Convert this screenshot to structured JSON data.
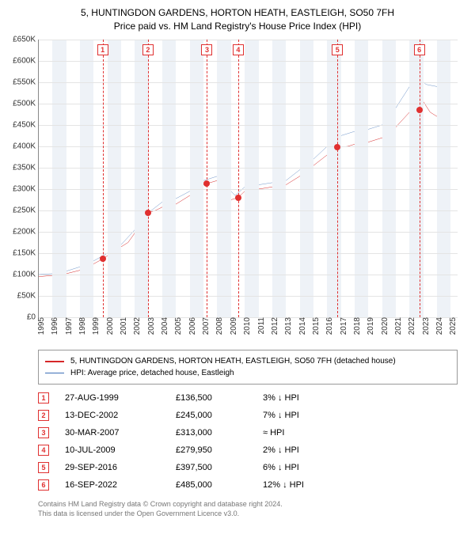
{
  "title": {
    "line1": "5, HUNTINGDON GARDENS, HORTON HEATH, EASTLEIGH, SO50 7FH",
    "line2": "Price paid vs. HM Land Registry's House Price Index (HPI)"
  },
  "chart": {
    "type": "line",
    "background_color": "#ffffff",
    "band_color": "#eef2f7",
    "grid_color": "#e4e4e4",
    "axis_color": "#888888",
    "xlim": [
      1995,
      2025.5
    ],
    "ylim": [
      0,
      650000
    ],
    "ytick_step": 50000,
    "ytick_labels": [
      "£0",
      "£50K",
      "£100K",
      "£150K",
      "£200K",
      "£250K",
      "£300K",
      "£350K",
      "£400K",
      "£450K",
      "£500K",
      "£550K",
      "£600K",
      "£650K"
    ],
    "x_ticks": [
      1995,
      1996,
      1997,
      1998,
      1999,
      2000,
      2001,
      2002,
      2003,
      2004,
      2005,
      2006,
      2007,
      2008,
      2009,
      2010,
      2011,
      2012,
      2013,
      2014,
      2015,
      2016,
      2017,
      2018,
      2019,
      2020,
      2021,
      2022,
      2023,
      2024,
      2025
    ],
    "title_fontsize": 12,
    "label_fontsize": 10,
    "series": [
      {
        "name": "price_paid",
        "label": "5, HUNTINGDON GARDENS, HORTON HEATH, EASTLEIGH, SO50 7FH (detached house)",
        "color": "#d62728",
        "line_width": 2,
        "points": [
          [
            1995.0,
            95000
          ],
          [
            1996.0,
            98000
          ],
          [
            1997.0,
            102000
          ],
          [
            1998.0,
            110000
          ],
          [
            1999.0,
            125000
          ],
          [
            1999.65,
            136500
          ],
          [
            2000.5,
            155000
          ],
          [
            2001.5,
            175000
          ],
          [
            2002.5,
            220000
          ],
          [
            2002.95,
            245000
          ],
          [
            2003.5,
            250000
          ],
          [
            2004.0,
            258000
          ],
          [
            2005.0,
            265000
          ],
          [
            2006.0,
            285000
          ],
          [
            2007.0,
            310000
          ],
          [
            2007.25,
            313000
          ],
          [
            2008.0,
            320000
          ],
          [
            2008.5,
            300000
          ],
          [
            2009.0,
            275000
          ],
          [
            2009.5,
            279950
          ],
          [
            2010.0,
            295000
          ],
          [
            2011.0,
            300000
          ],
          [
            2012.0,
            305000
          ],
          [
            2013.0,
            310000
          ],
          [
            2014.0,
            330000
          ],
          [
            2015.0,
            355000
          ],
          [
            2016.0,
            380000
          ],
          [
            2016.75,
            397500
          ],
          [
            2017.5,
            400000
          ],
          [
            2018.0,
            405000
          ],
          [
            2019.0,
            410000
          ],
          [
            2020.0,
            420000
          ],
          [
            2021.0,
            445000
          ],
          [
            2022.0,
            480000
          ],
          [
            2022.7,
            485000
          ],
          [
            2023.0,
            505000
          ],
          [
            2023.5,
            480000
          ],
          [
            2024.0,
            470000
          ],
          [
            2024.5,
            475000
          ]
        ]
      },
      {
        "name": "hpi",
        "label": "HPI: Average price, detached house, Eastleigh",
        "color": "#3b6fb6",
        "line_width": 1.5,
        "points": [
          [
            1995.0,
            100000
          ],
          [
            1996.0,
            102000
          ],
          [
            1997.0,
            108000
          ],
          [
            1998.0,
            118000
          ],
          [
            1999.0,
            132000
          ],
          [
            2000.0,
            150000
          ],
          [
            2001.0,
            170000
          ],
          [
            2002.0,
            205000
          ],
          [
            2003.0,
            245000
          ],
          [
            2004.0,
            270000
          ],
          [
            2005.0,
            278000
          ],
          [
            2006.0,
            295000
          ],
          [
            2007.0,
            320000
          ],
          [
            2008.0,
            330000
          ],
          [
            2008.7,
            305000
          ],
          [
            2009.3,
            285000
          ],
          [
            2010.0,
            305000
          ],
          [
            2011.0,
            310000
          ],
          [
            2012.0,
            315000
          ],
          [
            2013.0,
            320000
          ],
          [
            2014.0,
            345000
          ],
          [
            2015.0,
            370000
          ],
          [
            2016.0,
            400000
          ],
          [
            2017.0,
            425000
          ],
          [
            2018.0,
            435000
          ],
          [
            2019.0,
            440000
          ],
          [
            2020.0,
            450000
          ],
          [
            2021.0,
            490000
          ],
          [
            2022.0,
            540000
          ],
          [
            2022.7,
            560000
          ],
          [
            2023.2,
            545000
          ],
          [
            2024.0,
            540000
          ],
          [
            2024.7,
            550000
          ]
        ]
      }
    ],
    "markers": [
      {
        "n": "1",
        "x": 1999.65,
        "y": 136500
      },
      {
        "n": "2",
        "x": 2002.95,
        "y": 245000
      },
      {
        "n": "3",
        "x": 2007.25,
        "y": 313000
      },
      {
        "n": "4",
        "x": 2009.52,
        "y": 279950
      },
      {
        "n": "5",
        "x": 2016.75,
        "y": 397500
      },
      {
        "n": "6",
        "x": 2022.71,
        "y": 485000
      }
    ]
  },
  "legend": {
    "items": [
      {
        "color": "#d62728",
        "width": 2,
        "label": "5, HUNTINGDON GARDENS, HORTON HEATH, EASTLEIGH, SO50 7FH (detached house)"
      },
      {
        "color": "#3b6fb6",
        "width": 1.5,
        "label": "HPI: Average price, detached house, Eastleigh"
      }
    ]
  },
  "transactions": [
    {
      "n": "1",
      "date": "27-AUG-1999",
      "price": "£136,500",
      "diff": "3% ↓ HPI"
    },
    {
      "n": "2",
      "date": "13-DEC-2002",
      "price": "£245,000",
      "diff": "7% ↓ HPI"
    },
    {
      "n": "3",
      "date": "30-MAR-2007",
      "price": "£313,000",
      "diff": "≈ HPI"
    },
    {
      "n": "4",
      "date": "10-JUL-2009",
      "price": "£279,950",
      "diff": "2% ↓ HPI"
    },
    {
      "n": "5",
      "date": "29-SEP-2016",
      "price": "£397,500",
      "diff": "6% ↓ HPI"
    },
    {
      "n": "6",
      "date": "16-SEP-2022",
      "price": "£485,000",
      "diff": "12% ↓ HPI"
    }
  ],
  "footer": {
    "line1": "Contains HM Land Registry data © Crown copyright and database right 2024.",
    "line2": "This data is licensed under the Open Government Licence v3.0."
  }
}
